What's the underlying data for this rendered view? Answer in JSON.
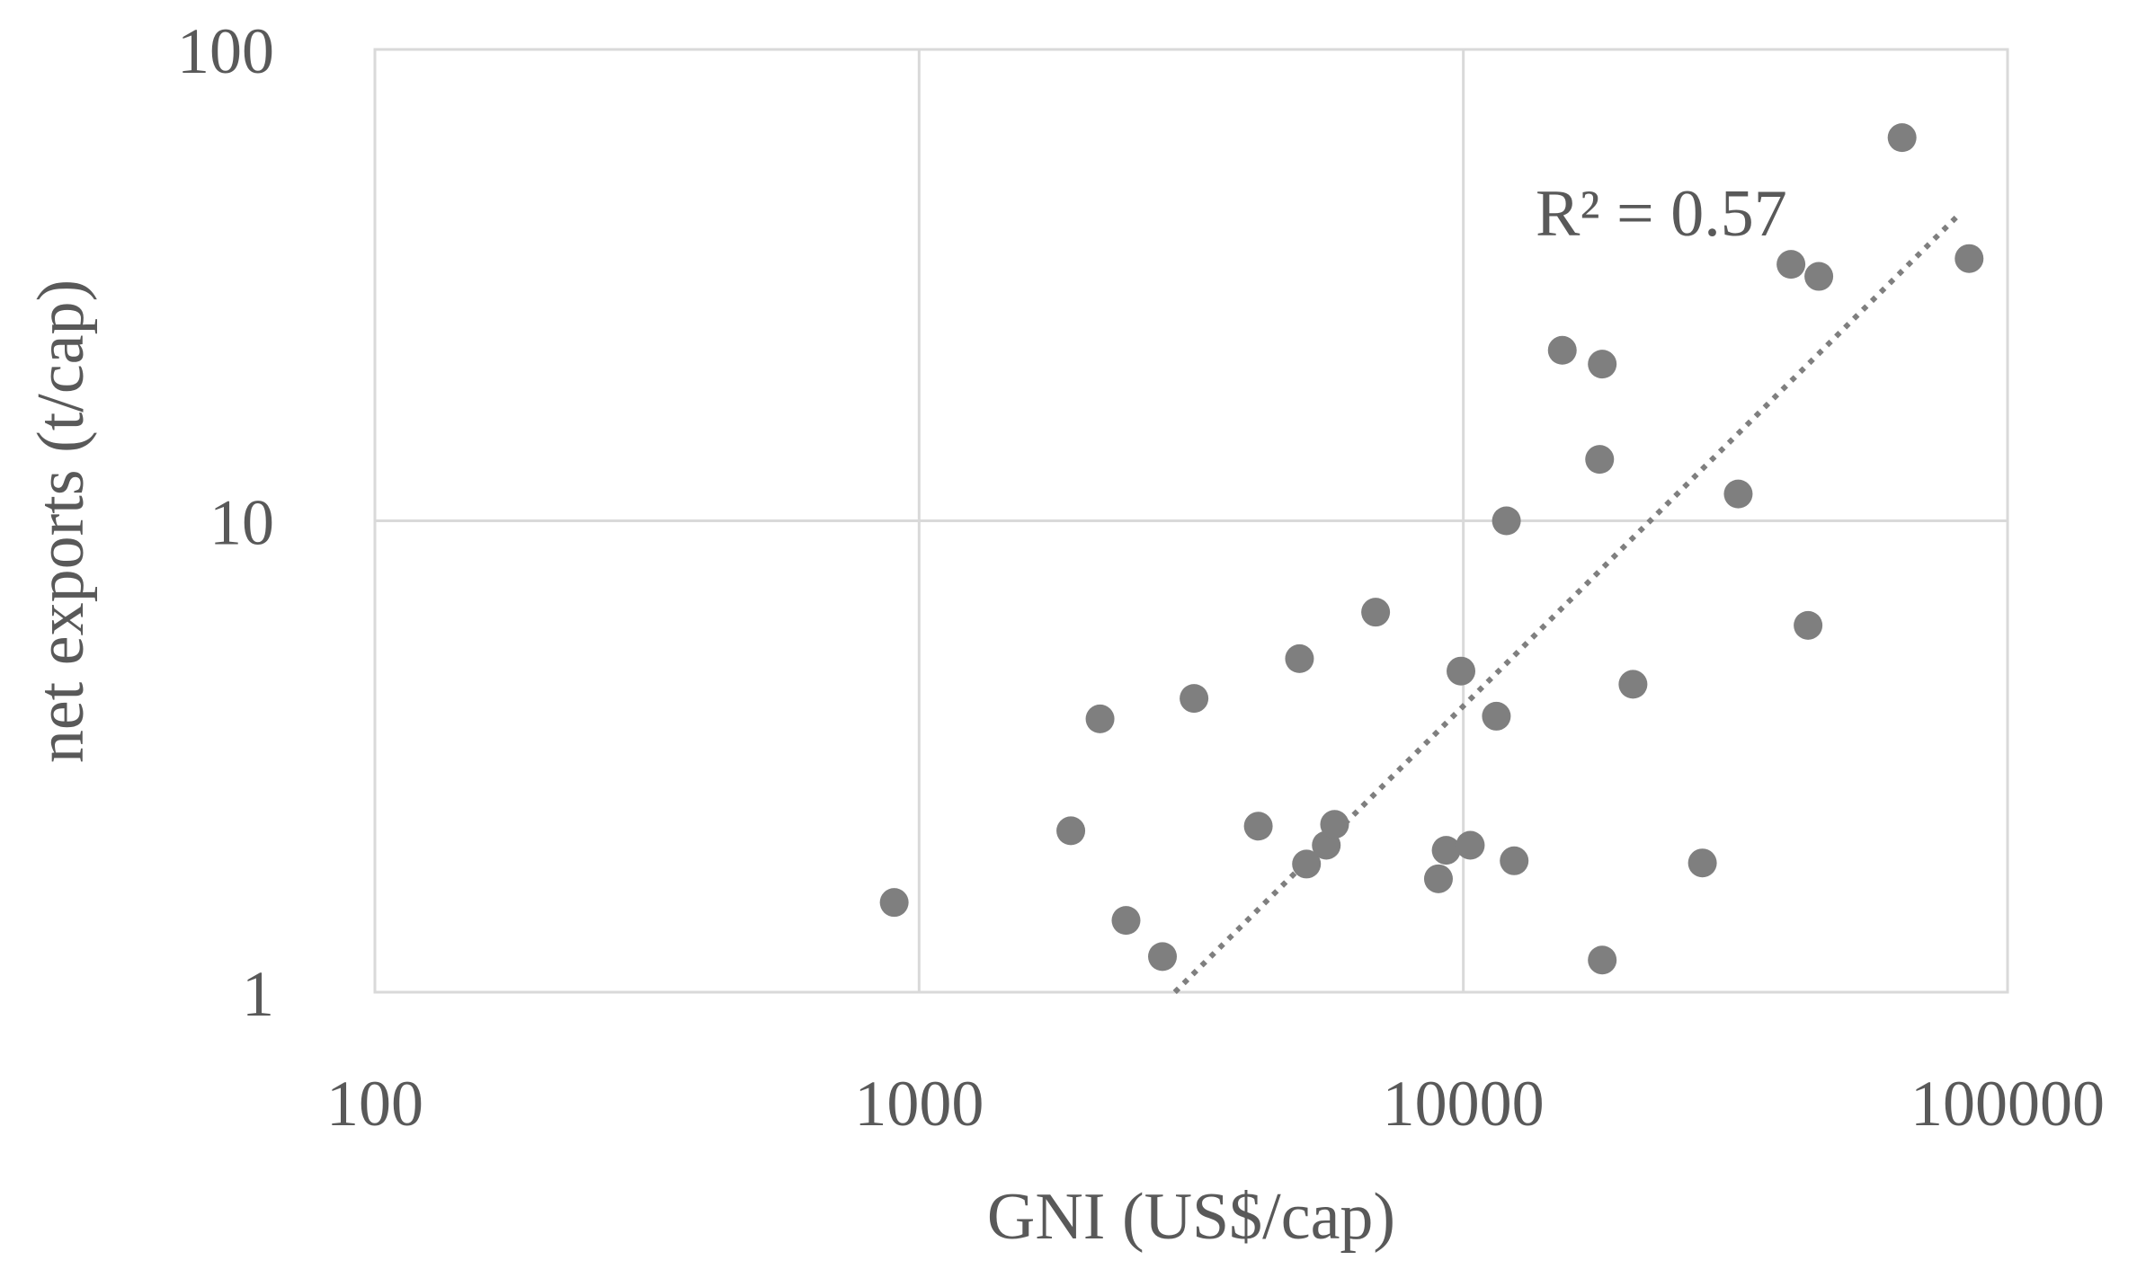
{
  "chart_data": {
    "type": "scatter",
    "title": "",
    "xlabel": "GNI (US$/cap)",
    "ylabel": "net exports (t/cap)",
    "x_scale": "log",
    "y_scale": "log",
    "xlim": [
      100,
      100000
    ],
    "ylim": [
      1,
      100
    ],
    "x_ticks": [
      {
        "value": 100,
        "label": "100"
      },
      {
        "value": 1000,
        "label": "1000"
      },
      {
        "value": 10000,
        "label": "10000"
      },
      {
        "value": 100000,
        "label": "100000"
      }
    ],
    "y_ticks": [
      {
        "value": 1,
        "label": "1"
      },
      {
        "value": 10,
        "label": "10"
      },
      {
        "value": 100,
        "label": "100"
      }
    ],
    "grid": true,
    "legend": "none",
    "colors": {
      "points": "#7f7f7f",
      "trendline": "#7f7f7f",
      "grid": "#d9d9d9",
      "text": "#595959"
    },
    "points": [
      {
        "x": 900,
        "y": 1.55
      },
      {
        "x": 1900,
        "y": 2.2
      },
      {
        "x": 2150,
        "y": 3.8
      },
      {
        "x": 2400,
        "y": 1.42
      },
      {
        "x": 2800,
        "y": 1.19
      },
      {
        "x": 3200,
        "y": 4.2
      },
      {
        "x": 4200,
        "y": 2.25
      },
      {
        "x": 5000,
        "y": 5.1
      },
      {
        "x": 5150,
        "y": 1.87
      },
      {
        "x": 5600,
        "y": 2.05
      },
      {
        "x": 5800,
        "y": 2.27
      },
      {
        "x": 6900,
        "y": 6.4
      },
      {
        "x": 9000,
        "y": 1.74
      },
      {
        "x": 9300,
        "y": 2.0
      },
      {
        "x": 9900,
        "y": 4.8
      },
      {
        "x": 10300,
        "y": 2.05
      },
      {
        "x": 11500,
        "y": 3.85
      },
      {
        "x": 12000,
        "y": 10.0
      },
      {
        "x": 12400,
        "y": 1.9
      },
      {
        "x": 15200,
        "y": 23.0
      },
      {
        "x": 17800,
        "y": 13.5
      },
      {
        "x": 18000,
        "y": 21.5
      },
      {
        "x": 18000,
        "y": 1.17
      },
      {
        "x": 20500,
        "y": 4.5
      },
      {
        "x": 27500,
        "y": 1.88
      },
      {
        "x": 32000,
        "y": 11.4
      },
      {
        "x": 40000,
        "y": 35.0
      },
      {
        "x": 43000,
        "y": 6.0
      },
      {
        "x": 45000,
        "y": 33.0
      },
      {
        "x": 64000,
        "y": 65.0
      },
      {
        "x": 85000,
        "y": 36.0
      }
    ],
    "trendline": {
      "type": "power",
      "style": "dotted",
      "x_range": [
        2950,
        82000
      ],
      "y_range": [
        1.0,
        45.0
      ],
      "annotation": "R² = 0.57"
    }
  }
}
